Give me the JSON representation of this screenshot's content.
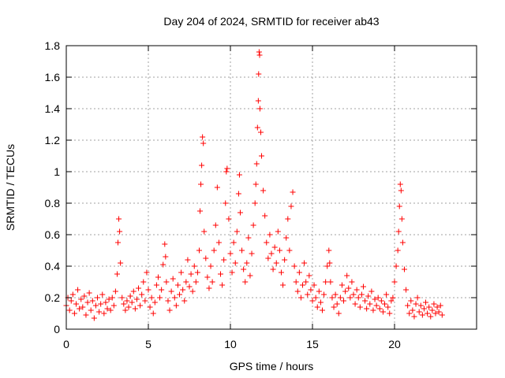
{
  "chart_data": {
    "type": "scatter",
    "title": "Day 204 of 2024, SRMTID for receiver ab43",
    "xlabel": "GPS time / hours",
    "ylabel": "SRMTID / TECUs",
    "xlim": [
      0,
      25
    ],
    "ylim": [
      0,
      1.8
    ],
    "xticks": [
      0,
      5,
      10,
      15,
      20
    ],
    "xtick_labels": [
      "0",
      "5",
      "10",
      "15",
      "20"
    ],
    "yticks": [
      0,
      0.2,
      0.4,
      0.6,
      0.8,
      1.0,
      1.2,
      1.4,
      1.6,
      1.8
    ],
    "ytick_labels": [
      "0",
      "0.2",
      "0.4",
      "0.6",
      "0.8",
      "1",
      "1.2",
      "1.4",
      "1.6",
      "1.8"
    ],
    "grid": true,
    "marker": "+",
    "color": "#ff0000",
    "series": [
      {
        "name": "SRMTID",
        "points": [
          [
            0.0,
            0.15
          ],
          [
            0.1,
            0.2
          ],
          [
            0.2,
            0.12
          ],
          [
            0.3,
            0.18
          ],
          [
            0.4,
            0.22
          ],
          [
            0.5,
            0.1
          ],
          [
            0.6,
            0.16
          ],
          [
            0.7,
            0.25
          ],
          [
            0.8,
            0.13
          ],
          [
            0.9,
            0.19
          ],
          [
            1.0,
            0.14
          ],
          [
            1.1,
            0.21
          ],
          [
            1.2,
            0.09
          ],
          [
            1.3,
            0.17
          ],
          [
            1.4,
            0.23
          ],
          [
            1.5,
            0.12
          ],
          [
            1.6,
            0.18
          ],
          [
            1.7,
            0.07
          ],
          [
            1.8,
            0.15
          ],
          [
            1.9,
            0.2
          ],
          [
            2.0,
            0.11
          ],
          [
            2.1,
            0.16
          ],
          [
            2.2,
            0.22
          ],
          [
            2.3,
            0.1
          ],
          [
            2.4,
            0.17
          ],
          [
            2.5,
            0.13
          ],
          [
            2.6,
            0.19
          ],
          [
            2.7,
            0.12
          ],
          [
            2.8,
            0.2
          ],
          [
            2.9,
            0.15
          ],
          [
            3.0,
            0.24
          ],
          [
            3.1,
            0.35
          ],
          [
            3.15,
            0.55
          ],
          [
            3.2,
            0.7
          ],
          [
            3.25,
            0.62
          ],
          [
            3.3,
            0.42
          ],
          [
            3.4,
            0.2
          ],
          [
            3.5,
            0.16
          ],
          [
            3.6,
            0.12
          ],
          [
            3.7,
            0.18
          ],
          [
            3.8,
            0.14
          ],
          [
            3.9,
            0.21
          ],
          [
            4.0,
            0.17
          ],
          [
            4.1,
            0.24
          ],
          [
            4.2,
            0.13
          ],
          [
            4.3,
            0.19
          ],
          [
            4.4,
            0.26
          ],
          [
            4.5,
            0.15
          ],
          [
            4.6,
            0.22
          ],
          [
            4.7,
            0.3
          ],
          [
            4.8,
            0.18
          ],
          [
            4.9,
            0.36
          ],
          [
            5.0,
            0.25
          ],
          [
            5.1,
            0.14
          ],
          [
            5.2,
            0.2
          ],
          [
            5.3,
            0.1
          ],
          [
            5.4,
            0.17
          ],
          [
            5.5,
            0.28
          ],
          [
            5.6,
            0.33
          ],
          [
            5.7,
            0.2
          ],
          [
            5.8,
            0.25
          ],
          [
            5.9,
            0.41
          ],
          [
            6.0,
            0.54
          ],
          [
            6.05,
            0.46
          ],
          [
            6.1,
            0.3
          ],
          [
            6.2,
            0.18
          ],
          [
            6.3,
            0.12
          ],
          [
            6.4,
            0.24
          ],
          [
            6.5,
            0.32
          ],
          [
            6.6,
            0.2
          ],
          [
            6.7,
            0.15
          ],
          [
            6.8,
            0.28
          ],
          [
            6.9,
            0.22
          ],
          [
            7.0,
            0.36
          ],
          [
            7.1,
            0.25
          ],
          [
            7.2,
            0.18
          ],
          [
            7.3,
            0.3
          ],
          [
            7.4,
            0.44
          ],
          [
            7.5,
            0.27
          ],
          [
            7.6,
            0.35
          ],
          [
            7.7,
            0.24
          ],
          [
            7.8,
            0.4
          ],
          [
            7.9,
            0.3
          ],
          [
            8.0,
            0.36
          ],
          [
            8.1,
            0.5
          ],
          [
            8.15,
            0.75
          ],
          [
            8.2,
            0.92
          ],
          [
            8.25,
            1.04
          ],
          [
            8.3,
            1.22
          ],
          [
            8.35,
            1.18
          ],
          [
            8.4,
            0.62
          ],
          [
            8.5,
            0.45
          ],
          [
            8.6,
            0.33
          ],
          [
            8.7,
            0.26
          ],
          [
            8.8,
            0.4
          ],
          [
            8.9,
            0.3
          ],
          [
            9.0,
            0.5
          ],
          [
            9.1,
            0.66
          ],
          [
            9.2,
            0.9
          ],
          [
            9.3,
            0.55
          ],
          [
            9.4,
            0.35
          ],
          [
            9.5,
            0.28
          ],
          [
            9.6,
            0.44
          ],
          [
            9.7,
            0.8
          ],
          [
            9.75,
            1.0
          ],
          [
            9.8,
            1.02
          ],
          [
            9.9,
            0.7
          ],
          [
            10.0,
            0.48
          ],
          [
            10.1,
            0.36
          ],
          [
            10.2,
            0.55
          ],
          [
            10.3,
            0.42
          ],
          [
            10.4,
            0.62
          ],
          [
            10.5,
            0.86
          ],
          [
            10.55,
            0.98
          ],
          [
            10.6,
            0.74
          ],
          [
            10.7,
            0.5
          ],
          [
            10.8,
            0.38
          ],
          [
            10.9,
            0.3
          ],
          [
            11.0,
            0.42
          ],
          [
            11.1,
            0.58
          ],
          [
            11.2,
            0.34
          ],
          [
            11.3,
            0.48
          ],
          [
            11.4,
            0.66
          ],
          [
            11.5,
            0.8
          ],
          [
            11.55,
            0.92
          ],
          [
            11.6,
            1.05
          ],
          [
            11.65,
            1.28
          ],
          [
            11.7,
            1.45
          ],
          [
            11.72,
            1.62
          ],
          [
            11.75,
            1.76
          ],
          [
            11.78,
            1.74
          ],
          [
            11.8,
            1.4
          ],
          [
            11.85,
            1.25
          ],
          [
            11.9,
            1.1
          ],
          [
            12.0,
            0.88
          ],
          [
            12.1,
            0.72
          ],
          [
            12.2,
            0.55
          ],
          [
            12.3,
            0.45
          ],
          [
            12.4,
            0.6
          ],
          [
            12.5,
            0.48
          ],
          [
            12.6,
            0.38
          ],
          [
            12.7,
            0.52
          ],
          [
            12.8,
            0.42
          ],
          [
            12.9,
            0.62
          ],
          [
            13.0,
            0.5
          ],
          [
            13.1,
            0.36
          ],
          [
            13.2,
            0.28
          ],
          [
            13.3,
            0.44
          ],
          [
            13.4,
            0.58
          ],
          [
            13.5,
            0.7
          ],
          [
            13.6,
            0.5
          ],
          [
            13.7,
            0.78
          ],
          [
            13.8,
            0.87
          ],
          [
            13.9,
            0.4
          ],
          [
            14.0,
            0.3
          ],
          [
            14.1,
            0.24
          ],
          [
            14.2,
            0.36
          ],
          [
            14.3,
            0.2
          ],
          [
            14.4,
            0.28
          ],
          [
            14.5,
            0.42
          ],
          [
            14.6,
            0.3
          ],
          [
            14.7,
            0.22
          ],
          [
            14.8,
            0.34
          ],
          [
            14.9,
            0.25
          ],
          [
            15.0,
            0.18
          ],
          [
            15.1,
            0.28
          ],
          [
            15.2,
            0.2
          ],
          [
            15.3,
            0.14
          ],
          [
            15.4,
            0.24
          ],
          [
            15.5,
            0.17
          ],
          [
            15.6,
            0.12
          ],
          [
            15.7,
            0.22
          ],
          [
            15.8,
            0.3
          ],
          [
            15.9,
            0.4
          ],
          [
            16.0,
            0.5
          ],
          [
            16.05,
            0.42
          ],
          [
            16.1,
            0.3
          ],
          [
            16.2,
            0.2
          ],
          [
            16.3,
            0.14
          ],
          [
            16.4,
            0.22
          ],
          [
            16.5,
            0.16
          ],
          [
            16.6,
            0.1
          ],
          [
            16.7,
            0.2
          ],
          [
            16.8,
            0.28
          ],
          [
            16.9,
            0.18
          ],
          [
            17.0,
            0.24
          ],
          [
            17.1,
            0.34
          ],
          [
            17.2,
            0.26
          ],
          [
            17.3,
            0.2
          ],
          [
            17.4,
            0.3
          ],
          [
            17.5,
            0.22
          ],
          [
            17.6,
            0.16
          ],
          [
            17.7,
            0.25
          ],
          [
            17.8,
            0.2
          ],
          [
            17.9,
            0.14
          ],
          [
            18.0,
            0.22
          ],
          [
            18.1,
            0.27
          ],
          [
            18.2,
            0.18
          ],
          [
            18.3,
            0.13
          ],
          [
            18.4,
            0.21
          ],
          [
            18.5,
            0.16
          ],
          [
            18.6,
            0.24
          ],
          [
            18.7,
            0.12
          ],
          [
            18.8,
            0.19
          ],
          [
            18.9,
            0.15
          ],
          [
            19.0,
            0.2
          ],
          [
            19.1,
            0.13
          ],
          [
            19.2,
            0.18
          ],
          [
            19.3,
            0.11
          ],
          [
            19.4,
            0.16
          ],
          [
            19.5,
            0.22
          ],
          [
            19.6,
            0.14
          ],
          [
            19.7,
            0.1
          ],
          [
            19.8,
            0.18
          ],
          [
            19.9,
            0.2
          ],
          [
            20.0,
            0.3
          ],
          [
            20.1,
            0.4
          ],
          [
            20.2,
            0.5
          ],
          [
            20.25,
            0.62
          ],
          [
            20.3,
            0.78
          ],
          [
            20.35,
            0.92
          ],
          [
            20.4,
            0.88
          ],
          [
            20.45,
            0.7
          ],
          [
            20.5,
            0.55
          ],
          [
            20.6,
            0.38
          ],
          [
            20.7,
            0.25
          ],
          [
            20.8,
            0.15
          ],
          [
            20.9,
            0.1
          ],
          [
            21.0,
            0.18
          ],
          [
            21.1,
            0.12
          ],
          [
            21.2,
            0.08
          ],
          [
            21.3,
            0.16
          ],
          [
            21.4,
            0.2
          ],
          [
            21.5,
            0.11
          ],
          [
            21.6,
            0.15
          ],
          [
            21.7,
            0.09
          ],
          [
            21.8,
            0.13
          ],
          [
            21.9,
            0.17
          ],
          [
            22.0,
            0.1
          ],
          [
            22.1,
            0.14
          ],
          [
            22.2,
            0.08
          ],
          [
            22.3,
            0.12
          ],
          [
            22.4,
            0.16
          ],
          [
            22.5,
            0.1
          ],
          [
            22.6,
            0.14
          ],
          [
            22.7,
            0.11
          ],
          [
            22.8,
            0.15
          ],
          [
            22.9,
            0.09
          ]
        ]
      }
    ]
  }
}
